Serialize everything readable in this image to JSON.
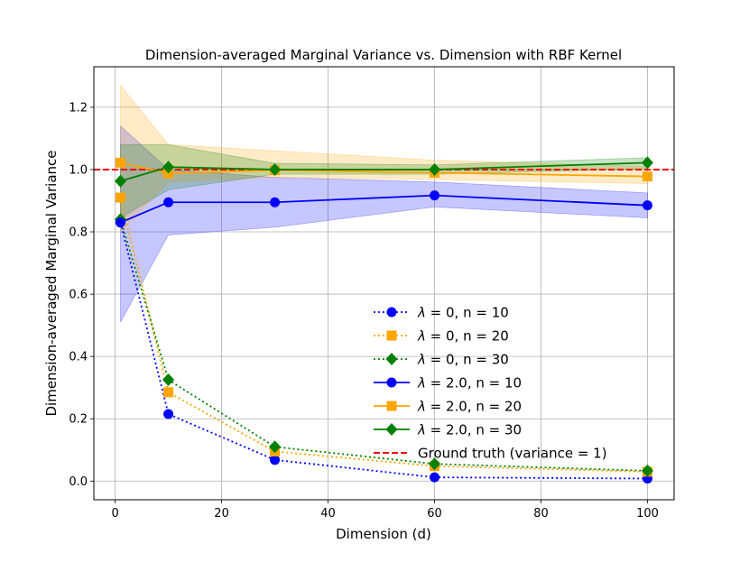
{
  "chart_data": {
    "type": "line",
    "title": "Dimension-averaged Marginal Variance vs. Dimension with RBF Kernel",
    "xlabel": "Dimension (d)",
    "ylabel": "Dimension-averaged Marginal Variance",
    "xlim": [
      -4,
      105
    ],
    "ylim": [
      -0.06,
      1.33
    ],
    "xticks": [
      0,
      20,
      40,
      60,
      80,
      100
    ],
    "yticks": [
      0.0,
      0.2,
      0.4,
      0.6,
      0.8,
      1.0,
      1.2
    ],
    "ytick_labels": [
      "0.0",
      "0.2",
      "0.4",
      "0.6",
      "0.8",
      "1.0",
      "1.2"
    ],
    "grid": true,
    "x": [
      1,
      10,
      30,
      60,
      100
    ],
    "series": [
      {
        "name": "λ = 0, n = 10",
        "lambda": "0",
        "n": "10",
        "color": "#0000ff",
        "marker": "circle",
        "linestyle": "dotted",
        "values": [
          0.83,
          0.215,
          0.068,
          0.012,
          0.008
        ]
      },
      {
        "name": "λ = 0, n = 20",
        "lambda": "0",
        "n": "20",
        "color": "#ffa500",
        "marker": "square",
        "linestyle": "dotted",
        "values": [
          0.91,
          0.285,
          0.095,
          0.048,
          0.03
        ]
      },
      {
        "name": "λ = 0, n = 30",
        "lambda": "0",
        "n": "30",
        "color": "#008000",
        "marker": "diamond",
        "linestyle": "dotted",
        "values": [
          0.84,
          0.325,
          0.11,
          0.055,
          0.033
        ]
      },
      {
        "name": "λ = 2.0, n = 10",
        "lambda": "2.0",
        "n": "10",
        "color": "#0000ff",
        "marker": "circle",
        "linestyle": "solid",
        "values": [
          0.83,
          0.895,
          0.895,
          0.917,
          0.885
        ],
        "band_lower": [
          0.51,
          0.79,
          0.815,
          0.88,
          0.845
        ],
        "band_upper": [
          1.14,
          1.0,
          0.975,
          0.96,
          0.925
        ]
      },
      {
        "name": "λ = 2.0, n = 20",
        "lambda": "2.0",
        "n": "20",
        "color": "#ffa500",
        "marker": "square",
        "linestyle": "solid",
        "values": [
          1.022,
          0.988,
          0.998,
          0.99,
          0.978
        ],
        "band_lower": [
          0.8,
          0.96,
          0.975,
          0.968,
          0.955
        ],
        "band_upper": [
          1.27,
          1.08,
          1.06,
          1.03,
          1.01
        ]
      },
      {
        "name": "λ = 2.0, n = 30",
        "lambda": "2.0",
        "n": "30",
        "color": "#008000",
        "marker": "diamond",
        "linestyle": "solid",
        "values": [
          0.963,
          1.008,
          1.0,
          1.0,
          1.022
        ],
        "band_lower": [
          0.845,
          0.935,
          0.985,
          0.985,
          1.003
        ],
        "band_upper": [
          1.08,
          1.08,
          1.02,
          1.015,
          1.038
        ]
      }
    ],
    "reference_line": {
      "name": "Ground truth (variance = 1)",
      "y": 1.0,
      "color": "#ff0000",
      "linestyle": "dashed"
    },
    "legend_loc": "center-right"
  }
}
